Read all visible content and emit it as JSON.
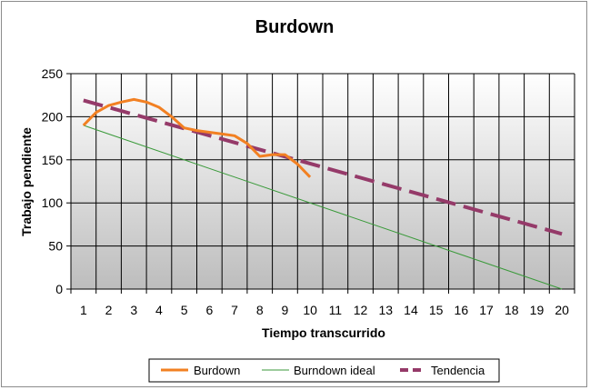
{
  "chart_data": {
    "type": "line",
    "title": "Burdown",
    "xlabel": "Tiempo transcurrido",
    "ylabel": "Trabajo pendiente",
    "x": [
      1,
      2,
      3,
      4,
      5,
      6,
      7,
      8,
      9,
      10,
      11,
      12,
      13,
      14,
      15,
      16,
      17,
      18,
      19,
      20
    ],
    "xlim": [
      1,
      20
    ],
    "ylim": [
      0,
      250
    ],
    "yticks": [
      0,
      50,
      100,
      150,
      200,
      250
    ],
    "grid": true,
    "legend": "bottom",
    "series": [
      {
        "name": "Burdown",
        "color": "#f28022",
        "style": "solid",
        "x": [
          1,
          1.5,
          2,
          2.5,
          3,
          3.5,
          4,
          4.5,
          5,
          5.5,
          6,
          6.5,
          7,
          7.5,
          8,
          8.5,
          9,
          9.5,
          10
        ],
        "values": [
          190,
          205,
          213,
          217,
          220,
          217,
          211,
          200,
          187,
          184,
          182,
          180,
          178,
          169,
          154,
          156,
          156,
          145,
          130
        ]
      },
      {
        "name": "Burndown ideal",
        "color": "#3a9a3a",
        "style": "solid",
        "x": [
          1,
          20
        ],
        "values": [
          190,
          0
        ]
      },
      {
        "name": "Tendencia",
        "color": "#953a69",
        "style": "dashed",
        "x": [
          1,
          20
        ],
        "values": [
          219,
          64
        ]
      }
    ]
  }
}
